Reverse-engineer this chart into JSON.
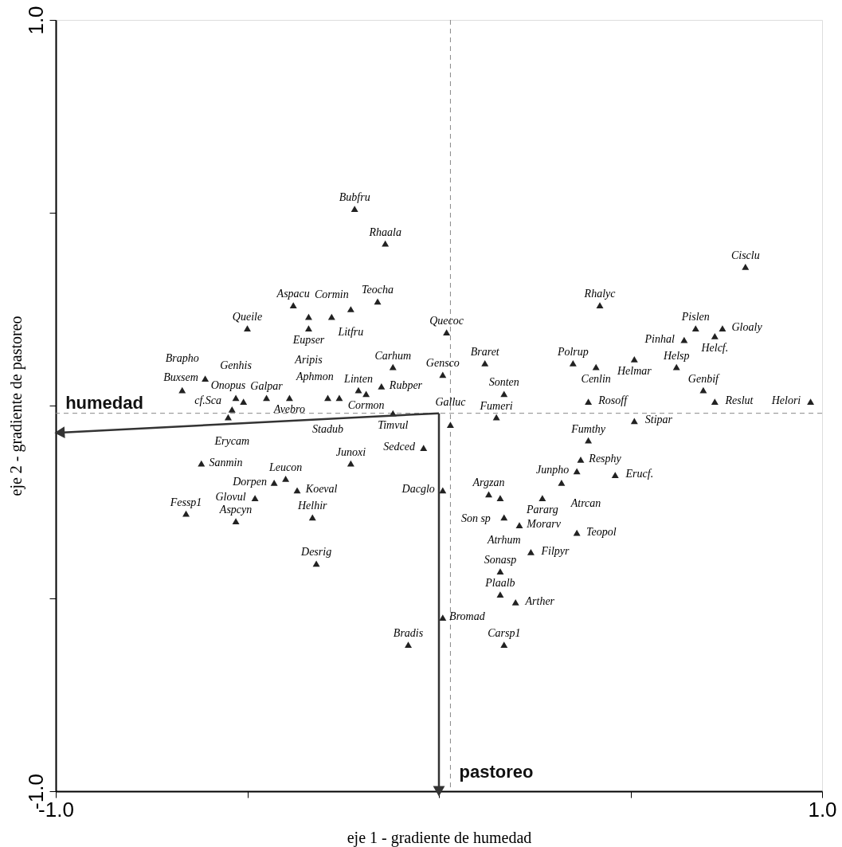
{
  "chart_data": {
    "type": "scatter",
    "xlabel": "eje 1 - gradiente de humedad",
    "ylabel": "eje 2 - gradiente de pastoreo",
    "xlim": [
      -1,
      1
    ],
    "ylim": [
      -1,
      1
    ],
    "xticks": [
      {
        "value": -1,
        "label": "-1.0"
      },
      {
        "value": -0.5,
        "label": null
      },
      {
        "value": 0,
        "label": null
      },
      {
        "value": 0.5,
        "label": null
      },
      {
        "value": 1,
        "label": "1.0"
      }
    ],
    "yticks": [
      {
        "value": -1,
        "label": "-1.0"
      },
      {
        "value": -0.5,
        "label": null
      },
      {
        "value": 0,
        "label": null
      },
      {
        "value": 0.5,
        "label": null
      },
      {
        "value": 1,
        "label": "1.0"
      }
    ],
    "grid": false,
    "marker": "triangle",
    "ref_lines": [
      {
        "axis": "x",
        "value": 0.03,
        "color": "#888888",
        "line_style": "dashed"
      },
      {
        "axis": "y",
        "value": -0.02,
        "color": "#888888",
        "line_style": "dashed"
      }
    ],
    "series": [
      {
        "color": "#222222",
        "x": [
          -0.22,
          -0.14,
          -0.38,
          -0.5,
          -0.34,
          -0.34,
          -0.28,
          -0.23,
          -0.16,
          -0.12,
          -0.15,
          -0.19,
          -0.21,
          -0.26,
          -0.29,
          -0.39,
          -0.45,
          -0.51,
          -0.53,
          -0.61,
          -0.67,
          -0.54,
          -0.55,
          -0.12,
          0.02,
          0.01,
          0.8,
          0.42,
          0.64,
          0.67,
          0.74,
          0.72,
          0.12,
          0.35,
          0.41,
          0.51,
          0.62,
          0.17,
          0.39,
          0.69,
          0.72,
          0.97,
          0.51,
          0.15,
          0.03,
          0.39,
          -0.04,
          0.37,
          0.36,
          0.46,
          0.32,
          0.01,
          0.13,
          0.16,
          0.27,
          0.17,
          0.21,
          0.36,
          0.24,
          0.16,
          0.16,
          0.2,
          0.01,
          -0.08,
          0.17,
          -0.62,
          -0.23,
          -0.4,
          -0.43,
          -0.37,
          -0.48,
          -0.53,
          -0.66,
          -0.33,
          -0.32
        ],
        "values": [
          0.51,
          0.42,
          0.26,
          0.2,
          0.23,
          0.2,
          0.23,
          0.25,
          0.27,
          0.1,
          0.05,
          0.03,
          0.04,
          0.02,
          0.02,
          0.02,
          0.02,
          0.01,
          0.02,
          0.07,
          0.04,
          -0.01,
          -0.03,
          -0.02,
          0.19,
          0.08,
          0.36,
          0.26,
          0.17,
          0.2,
          0.2,
          0.18,
          0.11,
          0.11,
          0.1,
          0.12,
          0.1,
          0.03,
          0.01,
          0.04,
          0.01,
          0.01,
          -0.04,
          -0.03,
          -0.05,
          -0.09,
          -0.11,
          -0.14,
          -0.17,
          -0.18,
          -0.2,
          -0.22,
          -0.23,
          -0.24,
          -0.24,
          -0.29,
          -0.31,
          -0.33,
          -0.38,
          -0.43,
          -0.49,
          -0.51,
          -0.55,
          -0.62,
          -0.62,
          -0.15,
          -0.15,
          -0.19,
          -0.2,
          -0.22,
          -0.24,
          -0.3,
          -0.28,
          -0.29,
          -0.41
        ]
      },
      {
        "type": "line",
        "name": "humedad",
        "color": "#333333",
        "x": [
          0,
          -0.99
        ],
        "values": [
          -0.02,
          -0.07
        ]
      },
      {
        "type": "line",
        "name": "pastoreo",
        "color": "#333333",
        "x": [
          0,
          0
        ],
        "values": [
          -0.02,
          -1.0
        ]
      }
    ],
    "annotations": [
      {
        "text": "Bubfru",
        "x": -0.22,
        "y": 0.51
      },
      {
        "text": "Rhaala",
        "x": -0.14,
        "y": 0.42
      },
      {
        "text": "Aspacu",
        "x": -0.38,
        "y": 0.26
      },
      {
        "text": "Queile",
        "x": -0.5,
        "y": 0.2
      },
      {
        "text": "Eupser",
        "x": -0.34,
        "y": 0.23
      },
      {
        "text": "Aripis",
        "x": -0.34,
        "y": 0.2
      },
      {
        "text": "Cormin",
        "x": -0.28,
        "y": 0.23
      },
      {
        "text": "Litfru",
        "x": -0.23,
        "y": 0.25
      },
      {
        "text": "Teocha",
        "x": -0.16,
        "y": 0.27
      },
      {
        "text": "Carhum",
        "x": -0.12,
        "y": 0.1
      },
      {
        "text": "Rubper",
        "x": -0.15,
        "y": 0.05
      },
      {
        "text": "Cormon",
        "x": -0.19,
        "y": 0.03
      },
      {
        "text": "Linten",
        "x": -0.21,
        "y": 0.04
      },
      {
        "text": "Aphmon",
        "x": -0.26,
        "y": 0.02
      },
      {
        "text": "Stadub",
        "x": -0.29,
        "y": 0.02
      },
      {
        "text": "Avebro",
        "x": -0.39,
        "y": 0.02
      },
      {
        "text": "Galpar",
        "x": -0.45,
        "y": 0.02
      },
      {
        "text": "cf.Sca",
        "x": -0.51,
        "y": 0.01
      },
      {
        "text": "Genhis",
        "x": -0.53,
        "y": 0.02
      },
      {
        "text": "Buxsem",
        "x": -0.61,
        "y": 0.07
      },
      {
        "text": "Brapho",
        "x": -0.67,
        "y": 0.04
      },
      {
        "text": "Erycam",
        "x": -0.54,
        "y": -0.01
      },
      {
        "text": "Onopus",
        "x": -0.55,
        "y": -0.03
      },
      {
        "text": "Timvul",
        "x": -0.12,
        "y": -0.02
      },
      {
        "text": "Quecoc",
        "x": 0.02,
        "y": 0.19
      },
      {
        "text": "Gensco",
        "x": 0.01,
        "y": 0.08
      },
      {
        "text": "Cisclu",
        "x": 0.8,
        "y": 0.36
      },
      {
        "text": "Rhalyc",
        "x": 0.42,
        "y": 0.26
      },
      {
        "text": "Pinhal",
        "x": 0.64,
        "y": 0.17
      },
      {
        "text": "Pislen",
        "x": 0.67,
        "y": 0.2
      },
      {
        "text": "Gloaly",
        "x": 0.74,
        "y": 0.2
      },
      {
        "text": "Helcf.",
        "x": 0.72,
        "y": 0.18
      },
      {
        "text": "Braret",
        "x": 0.12,
        "y": 0.11
      },
      {
        "text": "Polrup",
        "x": 0.35,
        "y": 0.11
      },
      {
        "text": "Cenlin",
        "x": 0.41,
        "y": 0.1
      },
      {
        "text": "Helmar",
        "x": 0.51,
        "y": 0.12
      },
      {
        "text": "Helsp",
        "x": 0.62,
        "y": 0.1
      },
      {
        "text": "Sonten",
        "x": 0.17,
        "y": 0.03
      },
      {
        "text": "Rosoff",
        "x": 0.39,
        "y": 0.01
      },
      {
        "text": "Genbif",
        "x": 0.69,
        "y": 0.04
      },
      {
        "text": "Reslut",
        "x": 0.72,
        "y": 0.01
      },
      {
        "text": "Helori",
        "x": 0.97,
        "y": 0.01
      },
      {
        "text": "Stipar",
        "x": 0.51,
        "y": -0.04
      },
      {
        "text": "Fumeri",
        "x": 0.15,
        "y": -0.03
      },
      {
        "text": "Galluc",
        "x": 0.03,
        "y": -0.05
      },
      {
        "text": "Fumthy",
        "x": 0.39,
        "y": -0.09
      },
      {
        "text": "Sedced",
        "x": -0.04,
        "y": -0.11
      },
      {
        "text": "Resphy",
        "x": 0.37,
        "y": -0.14
      },
      {
        "text": "Junpho",
        "x": 0.36,
        "y": -0.17
      },
      {
        "text": "Erucf.",
        "x": 0.46,
        "y": -0.18
      },
      {
        "text": "Atrcan",
        "x": 0.32,
        "y": -0.2
      },
      {
        "text": "Dacglo",
        "x": 0.01,
        "y": -0.22
      },
      {
        "text": "Argzan",
        "x": 0.13,
        "y": -0.23
      },
      {
        "text": "Son sp",
        "x": 0.16,
        "y": -0.24
      },
      {
        "text": "Pararg",
        "x": 0.27,
        "y": -0.24
      },
      {
        "text": "Atrhum",
        "x": 0.17,
        "y": -0.29
      },
      {
        "text": "Morarv",
        "x": 0.21,
        "y": -0.31
      },
      {
        "text": "Teopol",
        "x": 0.36,
        "y": -0.33
      },
      {
        "text": "Filpyr",
        "x": 0.24,
        "y": -0.38
      },
      {
        "text": "Sonasp",
        "x": 0.16,
        "y": -0.43
      },
      {
        "text": "Plaalb",
        "x": 0.16,
        "y": -0.49
      },
      {
        "text": "Arther",
        "x": 0.2,
        "y": -0.51
      },
      {
        "text": "Bromad",
        "x": 0.01,
        "y": -0.55
      },
      {
        "text": "Bradis",
        "x": -0.08,
        "y": -0.62
      },
      {
        "text": "Carsp1",
        "x": 0.17,
        "y": -0.62
      },
      {
        "text": "Sanmin",
        "x": -0.62,
        "y": -0.15
      },
      {
        "text": "Junoxi",
        "x": -0.23,
        "y": -0.15
      },
      {
        "text": "Leucon",
        "x": -0.4,
        "y": -0.19
      },
      {
        "text": "Dorpen",
        "x": -0.43,
        "y": -0.2
      },
      {
        "text": "Koeval",
        "x": -0.37,
        "y": -0.22
      },
      {
        "text": "Glovul",
        "x": -0.48,
        "y": -0.24
      },
      {
        "text": "Aspcyn",
        "x": -0.53,
        "y": -0.3
      },
      {
        "text": "Fessp1",
        "x": -0.66,
        "y": -0.28
      },
      {
        "text": "Helhir",
        "x": -0.33,
        "y": -0.29
      },
      {
        "text": "Desrig",
        "x": -0.32,
        "y": -0.41
      }
    ]
  }
}
